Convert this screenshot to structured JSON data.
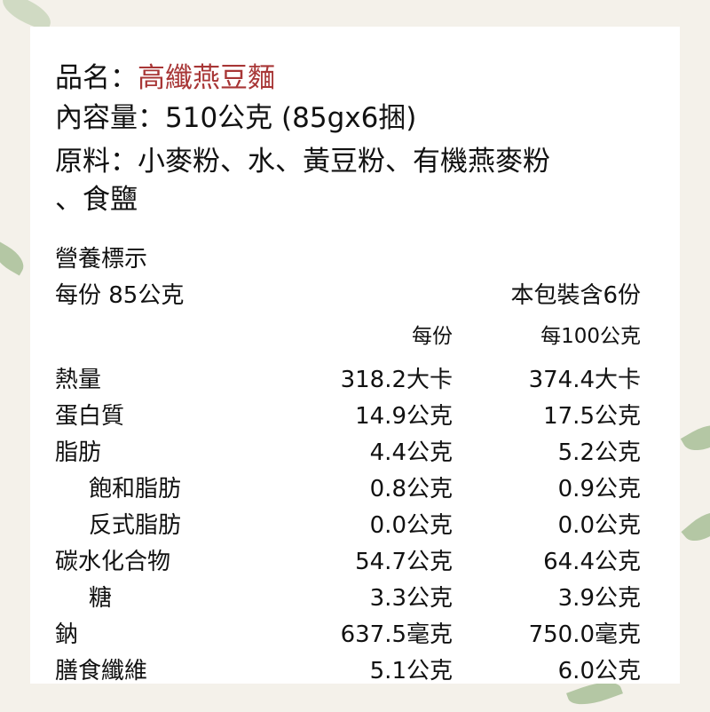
{
  "product": {
    "name_label": "品名：",
    "name_value": "高纖燕豆麵",
    "content_line": "內容量：510公克 (85gx6捆)",
    "ingredients_line1": "原料：小麥粉、水、黃豆粉、有機燕麥粉",
    "ingredients_line2": "、食鹽",
    "accent_color": "#a83636"
  },
  "nutrition": {
    "title": "營養標示",
    "serving_size": "每份 85公克",
    "servings_per_pack": "本包裝含6份",
    "col_per_serving": "每份",
    "col_per_100g": "每100公克",
    "rows": [
      {
        "label": "熱量",
        "per_serving": "318.2大卡",
        "per_100g": "374.4大卡",
        "indent": false
      },
      {
        "label": "蛋白質",
        "per_serving": "14.9公克",
        "per_100g": "17.5公克",
        "indent": false
      },
      {
        "label": "脂肪",
        "per_serving": "4.4公克",
        "per_100g": "5.2公克",
        "indent": false
      },
      {
        "label": "飽和脂肪",
        "per_serving": "0.8公克",
        "per_100g": "0.9公克",
        "indent": true
      },
      {
        "label": "反式脂肪",
        "per_serving": "0.0公克",
        "per_100g": "0.0公克",
        "indent": true
      },
      {
        "label": "碳水化合物",
        "per_serving": "54.7公克",
        "per_100g": "64.4公克",
        "indent": false
      },
      {
        "label": "糖",
        "per_serving": "3.3公克",
        "per_100g": "3.9公克",
        "indent": true
      },
      {
        "label": "鈉",
        "per_serving": "637.5毫克",
        "per_100g": "750.0毫克",
        "indent": false
      },
      {
        "label": "膳食纖維",
        "per_serving": "5.1公克",
        "per_100g": "6.0公克",
        "indent": false
      }
    ]
  }
}
